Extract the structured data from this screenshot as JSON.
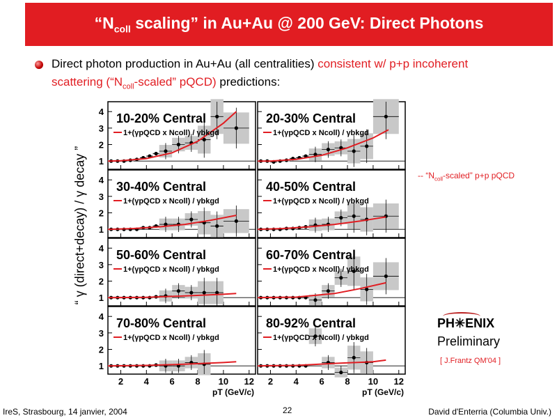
{
  "slide": {
    "title_pre": "“N",
    "title_sub": "coll",
    "title_post": " scaling” in Au+Au @ 200 GeV: Direct Photons",
    "bullet_p1": "Direct photon production in Au+Au (all centralities) ",
    "bullet_p2_red": "consistent w/ p+p incoherent scattering (“N",
    "bullet_p2_sub": "coll",
    "bullet_p2_red_b": "-scaled” pQCD)",
    "bullet_p3": " predictions:",
    "legend_pre": "-- “N",
    "legend_sub": "coll",
    "legend_post": "-scaled” p+p pQCD",
    "logo_text": "PH✳ENIX",
    "logo_sub": "Preliminary",
    "citation": "[ J.Frantz QM'04 ]",
    "footer_left": "IreS, Strasbourg, 14 janvier, 2004",
    "footer_page": "22",
    "footer_right": "David d'Enterria (Columbia Univ.)"
  },
  "chart_data": {
    "type": "scatter",
    "ylabel": "“ γ (direct+decay) / γ decay ”",
    "xlabel": "pT (GeV/c)",
    "xticks": [
      2,
      4,
      6,
      8,
      10,
      12
    ],
    "yticks": [
      1,
      2,
      3,
      4
    ],
    "xlim": [
      1,
      12.5
    ],
    "ylim": [
      0.5,
      4.6
    ],
    "curve_label": "1+(γpQCD x Ncoll) / γbkgd",
    "colors": {
      "curve": "#e11d22",
      "points": "#000000",
      "band": "#c8c8c8"
    },
    "panels": [
      {
        "label": "10-20% Central",
        "x": [
          1.25,
          1.75,
          2.25,
          2.75,
          3.25,
          3.75,
          4.25,
          4.75,
          5.5,
          6.5,
          7.5,
          8.5,
          9.5,
          11
        ],
        "y": [
          1.0,
          1.0,
          1.0,
          1.05,
          1.1,
          1.2,
          1.3,
          1.45,
          1.6,
          2.0,
          2.1,
          2.3,
          3.7,
          3.0
        ],
        "curve": [
          [
            1,
            1
          ],
          [
            2,
            1.02
          ],
          [
            4,
            1.15
          ],
          [
            6,
            1.5
          ],
          [
            8,
            2.2
          ],
          [
            10,
            3.3
          ],
          [
            11,
            4.0
          ]
        ]
      },
      {
        "label": "20-30% Central",
        "x": [
          1.25,
          1.75,
          2.25,
          2.75,
          3.25,
          3.75,
          4.25,
          4.75,
          5.5,
          6.5,
          7.5,
          8.5,
          9.5,
          11
        ],
        "y": [
          1.0,
          1.0,
          0.95,
          1.0,
          1.05,
          1.15,
          1.2,
          1.3,
          1.4,
          1.7,
          1.8,
          1.6,
          1.9,
          3.7
        ],
        "curve": [
          [
            1,
            1
          ],
          [
            2,
            1.0
          ],
          [
            4,
            1.1
          ],
          [
            6,
            1.35
          ],
          [
            8,
            1.8
          ],
          [
            10,
            2.4
          ],
          [
            11.2,
            2.9
          ]
        ]
      },
      {
        "label": "30-40% Central",
        "x": [
          1.25,
          1.75,
          2.25,
          2.75,
          3.25,
          3.75,
          4.25,
          4.75,
          5.5,
          6.5,
          7.5,
          8.5,
          9.5,
          11
        ],
        "y": [
          1.0,
          1.0,
          1.0,
          1.0,
          1.0,
          1.1,
          1.1,
          1.2,
          1.3,
          1.3,
          1.6,
          1.4,
          1.2,
          1.5
        ],
        "curve": [
          [
            1,
            1
          ],
          [
            3,
            1.05
          ],
          [
            5,
            1.15
          ],
          [
            7,
            1.3
          ],
          [
            9,
            1.55
          ],
          [
            11,
            1.85
          ]
        ]
      },
      {
        "label": "40-50% Central",
        "x": [
          1.25,
          1.75,
          2.25,
          2.75,
          3.25,
          3.75,
          4.25,
          4.75,
          5.5,
          6.5,
          7.5,
          8.5,
          9.5,
          11
        ],
        "y": [
          1.0,
          1.0,
          1.0,
          1.0,
          1.05,
          1.05,
          1.1,
          1.15,
          1.25,
          1.3,
          1.7,
          1.8,
          1.6,
          1.8
        ],
        "curve": [
          [
            1,
            1
          ],
          [
            3,
            1.05
          ],
          [
            5,
            1.15
          ],
          [
            7,
            1.3
          ],
          [
            9,
            1.5
          ],
          [
            11,
            1.75
          ]
        ]
      },
      {
        "label": "50-60% Central",
        "x": [
          1.25,
          1.75,
          2.25,
          2.75,
          3.25,
          3.75,
          4.25,
          4.75,
          5.5,
          6.5,
          7.5,
          8.5,
          9.5
        ],
        "y": [
          1.0,
          1.0,
          1.0,
          1.0,
          1.0,
          1.0,
          1.0,
          1.05,
          1.1,
          1.4,
          1.3,
          1.3,
          1.3
        ],
        "curve": [
          [
            1,
            1
          ],
          [
            4,
            1.02
          ],
          [
            7,
            1.1
          ],
          [
            10,
            1.2
          ],
          [
            11,
            1.25
          ]
        ]
      },
      {
        "label": "60-70% Central",
        "x": [
          1.25,
          1.75,
          2.25,
          2.75,
          3.25,
          3.75,
          4.25,
          4.75,
          5.5,
          6.5,
          7.5,
          8.5,
          9.5,
          11
        ],
        "y": [
          1.0,
          1.0,
          1.0,
          1.0,
          1.0,
          1.0,
          1.0,
          1.0,
          0.85,
          1.4,
          2.2,
          2.6,
          1.5,
          2.3
        ],
        "curve": [
          [
            1,
            1
          ],
          [
            4,
            1.03
          ],
          [
            7,
            1.25
          ],
          [
            9,
            1.55
          ],
          [
            11,
            1.9
          ]
        ]
      },
      {
        "label": "70-80% Central",
        "x": [
          1.25,
          1.75,
          2.25,
          2.75,
          3.25,
          3.75,
          4.25,
          4.75,
          5.5,
          6.5,
          7.5,
          8.5
        ],
        "y": [
          1.0,
          1.0,
          1.0,
          1.0,
          1.0,
          1.0,
          1.0,
          1.05,
          1.0,
          1.0,
          1.2,
          1.1
        ],
        "curve": [
          [
            1,
            1
          ],
          [
            4,
            1.03
          ],
          [
            7,
            1.1
          ],
          [
            10,
            1.2
          ],
          [
            11,
            1.25
          ]
        ]
      },
      {
        "label": "80-92% Central",
        "x": [
          1.25,
          1.75,
          2.25,
          2.75,
          3.25,
          3.75,
          4.25,
          4.75,
          5.5,
          6.5,
          7.5,
          8.5,
          9.5
        ],
        "y": [
          1.0,
          1.0,
          1.0,
          1.0,
          1.0,
          1.0,
          1.0,
          1.0,
          2.8,
          1.2,
          0.6,
          1.5,
          1.2
        ],
        "curve": [
          [
            1,
            1
          ],
          [
            4,
            1.03
          ],
          [
            7,
            1.15
          ],
          [
            10,
            1.25
          ],
          [
            11,
            1.35
          ]
        ]
      }
    ]
  }
}
